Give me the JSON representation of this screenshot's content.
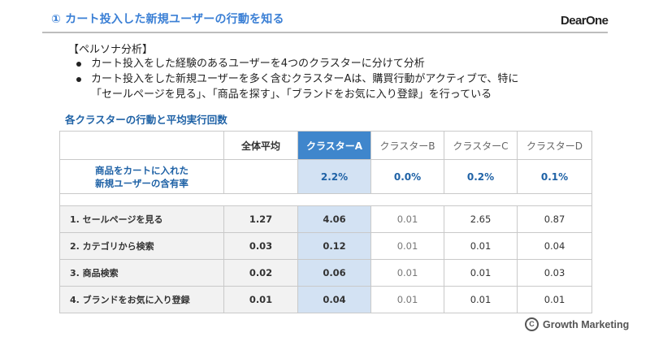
{
  "header": {
    "title": "① カート投入した新規ユーザーの行動を知る",
    "logo": "DearOne"
  },
  "persona": {
    "heading": "【ペルソナ分析】",
    "bullets": [
      {
        "line1": "カート投入をした経験のあるユーザーを4つのクラスターに分けて分析",
        "line2": ""
      },
      {
        "line1": "カート投入をした新規ユーザーを多く含むクラスターAは、購買行動がアクティブで、特に",
        "line2": "「セールページを見る」、「商品を探す」、「ブランドをお気に入り登録」を行っている"
      }
    ]
  },
  "table": {
    "title": "各クラスターの行動と平均実行回数",
    "columns": [
      "",
      "全体平均",
      "クラスターA",
      "クラスターB",
      "クラスターC",
      "クラスターD"
    ],
    "rate_row": {
      "label_line1": "商品をカートに入れた",
      "label_line2": "新規ユーザーの含有率",
      "values": [
        "",
        "2.2%",
        "0.0%",
        "0.2%",
        "0.1%"
      ]
    },
    "rows": [
      {
        "label": "1. セールページを見る",
        "values": [
          "1.27",
          "4.06",
          "0.01",
          "2.65",
          "0.87"
        ]
      },
      {
        "label": "2. カテゴリから検索",
        "values": [
          "0.03",
          "0.12",
          "0.01",
          "0.01",
          "0.04"
        ]
      },
      {
        "label": "3. 商品検索",
        "values": [
          "0.02",
          "0.06",
          "0.01",
          "0.01",
          "0.03"
        ]
      },
      {
        "label": "4. ブランドをお気に入り登録",
        "values": [
          "0.01",
          "0.04",
          "0.01",
          "0.01",
          "0.01"
        ]
      }
    ],
    "highlight_color": "#3f86cc",
    "highlight_fill": "#d3e2f3"
  },
  "footer": {
    "copyright_symbol": "C",
    "text": "Growth Marketing"
  },
  "colors": {
    "title_blue": "#3a7fd5",
    "table_title_blue": "#1f62a6",
    "rule_gray": "#bdbdbd"
  }
}
